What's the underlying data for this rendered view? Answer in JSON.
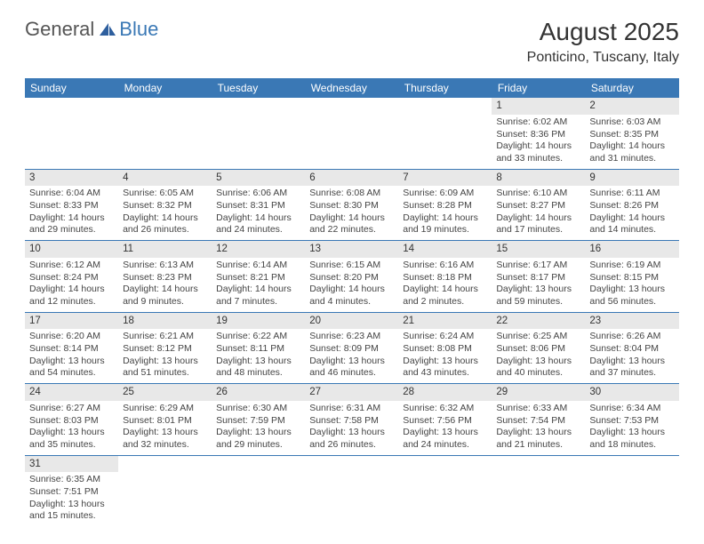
{
  "brand": {
    "part1": "General",
    "part2": "Blue"
  },
  "title": "August 2025",
  "location": "Ponticino, Tuscany, Italy",
  "colors": {
    "header_bg": "#3a78b5",
    "header_text": "#ffffff",
    "daynum_bg": "#e8e8e8",
    "border": "#3a78b5",
    "text": "#444444"
  },
  "weekdays": [
    "Sunday",
    "Monday",
    "Tuesday",
    "Wednesday",
    "Thursday",
    "Friday",
    "Saturday"
  ],
  "weeks": [
    [
      null,
      null,
      null,
      null,
      null,
      {
        "day": "1",
        "sunrise": "Sunrise: 6:02 AM",
        "sunset": "Sunset: 8:36 PM",
        "dl1": "Daylight: 14 hours",
        "dl2": "and 33 minutes."
      },
      {
        "day": "2",
        "sunrise": "Sunrise: 6:03 AM",
        "sunset": "Sunset: 8:35 PM",
        "dl1": "Daylight: 14 hours",
        "dl2": "and 31 minutes."
      }
    ],
    [
      {
        "day": "3",
        "sunrise": "Sunrise: 6:04 AM",
        "sunset": "Sunset: 8:33 PM",
        "dl1": "Daylight: 14 hours",
        "dl2": "and 29 minutes."
      },
      {
        "day": "4",
        "sunrise": "Sunrise: 6:05 AM",
        "sunset": "Sunset: 8:32 PM",
        "dl1": "Daylight: 14 hours",
        "dl2": "and 26 minutes."
      },
      {
        "day": "5",
        "sunrise": "Sunrise: 6:06 AM",
        "sunset": "Sunset: 8:31 PM",
        "dl1": "Daylight: 14 hours",
        "dl2": "and 24 minutes."
      },
      {
        "day": "6",
        "sunrise": "Sunrise: 6:08 AM",
        "sunset": "Sunset: 8:30 PM",
        "dl1": "Daylight: 14 hours",
        "dl2": "and 22 minutes."
      },
      {
        "day": "7",
        "sunrise": "Sunrise: 6:09 AM",
        "sunset": "Sunset: 8:28 PM",
        "dl1": "Daylight: 14 hours",
        "dl2": "and 19 minutes."
      },
      {
        "day": "8",
        "sunrise": "Sunrise: 6:10 AM",
        "sunset": "Sunset: 8:27 PM",
        "dl1": "Daylight: 14 hours",
        "dl2": "and 17 minutes."
      },
      {
        "day": "9",
        "sunrise": "Sunrise: 6:11 AM",
        "sunset": "Sunset: 8:26 PM",
        "dl1": "Daylight: 14 hours",
        "dl2": "and 14 minutes."
      }
    ],
    [
      {
        "day": "10",
        "sunrise": "Sunrise: 6:12 AM",
        "sunset": "Sunset: 8:24 PM",
        "dl1": "Daylight: 14 hours",
        "dl2": "and 12 minutes."
      },
      {
        "day": "11",
        "sunrise": "Sunrise: 6:13 AM",
        "sunset": "Sunset: 8:23 PM",
        "dl1": "Daylight: 14 hours",
        "dl2": "and 9 minutes."
      },
      {
        "day": "12",
        "sunrise": "Sunrise: 6:14 AM",
        "sunset": "Sunset: 8:21 PM",
        "dl1": "Daylight: 14 hours",
        "dl2": "and 7 minutes."
      },
      {
        "day": "13",
        "sunrise": "Sunrise: 6:15 AM",
        "sunset": "Sunset: 8:20 PM",
        "dl1": "Daylight: 14 hours",
        "dl2": "and 4 minutes."
      },
      {
        "day": "14",
        "sunrise": "Sunrise: 6:16 AM",
        "sunset": "Sunset: 8:18 PM",
        "dl1": "Daylight: 14 hours",
        "dl2": "and 2 minutes."
      },
      {
        "day": "15",
        "sunrise": "Sunrise: 6:17 AM",
        "sunset": "Sunset: 8:17 PM",
        "dl1": "Daylight: 13 hours",
        "dl2": "and 59 minutes."
      },
      {
        "day": "16",
        "sunrise": "Sunrise: 6:19 AM",
        "sunset": "Sunset: 8:15 PM",
        "dl1": "Daylight: 13 hours",
        "dl2": "and 56 minutes."
      }
    ],
    [
      {
        "day": "17",
        "sunrise": "Sunrise: 6:20 AM",
        "sunset": "Sunset: 8:14 PM",
        "dl1": "Daylight: 13 hours",
        "dl2": "and 54 minutes."
      },
      {
        "day": "18",
        "sunrise": "Sunrise: 6:21 AM",
        "sunset": "Sunset: 8:12 PM",
        "dl1": "Daylight: 13 hours",
        "dl2": "and 51 minutes."
      },
      {
        "day": "19",
        "sunrise": "Sunrise: 6:22 AM",
        "sunset": "Sunset: 8:11 PM",
        "dl1": "Daylight: 13 hours",
        "dl2": "and 48 minutes."
      },
      {
        "day": "20",
        "sunrise": "Sunrise: 6:23 AM",
        "sunset": "Sunset: 8:09 PM",
        "dl1": "Daylight: 13 hours",
        "dl2": "and 46 minutes."
      },
      {
        "day": "21",
        "sunrise": "Sunrise: 6:24 AM",
        "sunset": "Sunset: 8:08 PM",
        "dl1": "Daylight: 13 hours",
        "dl2": "and 43 minutes."
      },
      {
        "day": "22",
        "sunrise": "Sunrise: 6:25 AM",
        "sunset": "Sunset: 8:06 PM",
        "dl1": "Daylight: 13 hours",
        "dl2": "and 40 minutes."
      },
      {
        "day": "23",
        "sunrise": "Sunrise: 6:26 AM",
        "sunset": "Sunset: 8:04 PM",
        "dl1": "Daylight: 13 hours",
        "dl2": "and 37 minutes."
      }
    ],
    [
      {
        "day": "24",
        "sunrise": "Sunrise: 6:27 AM",
        "sunset": "Sunset: 8:03 PM",
        "dl1": "Daylight: 13 hours",
        "dl2": "and 35 minutes."
      },
      {
        "day": "25",
        "sunrise": "Sunrise: 6:29 AM",
        "sunset": "Sunset: 8:01 PM",
        "dl1": "Daylight: 13 hours",
        "dl2": "and 32 minutes."
      },
      {
        "day": "26",
        "sunrise": "Sunrise: 6:30 AM",
        "sunset": "Sunset: 7:59 PM",
        "dl1": "Daylight: 13 hours",
        "dl2": "and 29 minutes."
      },
      {
        "day": "27",
        "sunrise": "Sunrise: 6:31 AM",
        "sunset": "Sunset: 7:58 PM",
        "dl1": "Daylight: 13 hours",
        "dl2": "and 26 minutes."
      },
      {
        "day": "28",
        "sunrise": "Sunrise: 6:32 AM",
        "sunset": "Sunset: 7:56 PM",
        "dl1": "Daylight: 13 hours",
        "dl2": "and 24 minutes."
      },
      {
        "day": "29",
        "sunrise": "Sunrise: 6:33 AM",
        "sunset": "Sunset: 7:54 PM",
        "dl1": "Daylight: 13 hours",
        "dl2": "and 21 minutes."
      },
      {
        "day": "30",
        "sunrise": "Sunrise: 6:34 AM",
        "sunset": "Sunset: 7:53 PM",
        "dl1": "Daylight: 13 hours",
        "dl2": "and 18 minutes."
      }
    ],
    [
      {
        "day": "31",
        "sunrise": "Sunrise: 6:35 AM",
        "sunset": "Sunset: 7:51 PM",
        "dl1": "Daylight: 13 hours",
        "dl2": "and 15 minutes."
      },
      null,
      null,
      null,
      null,
      null,
      null
    ]
  ]
}
